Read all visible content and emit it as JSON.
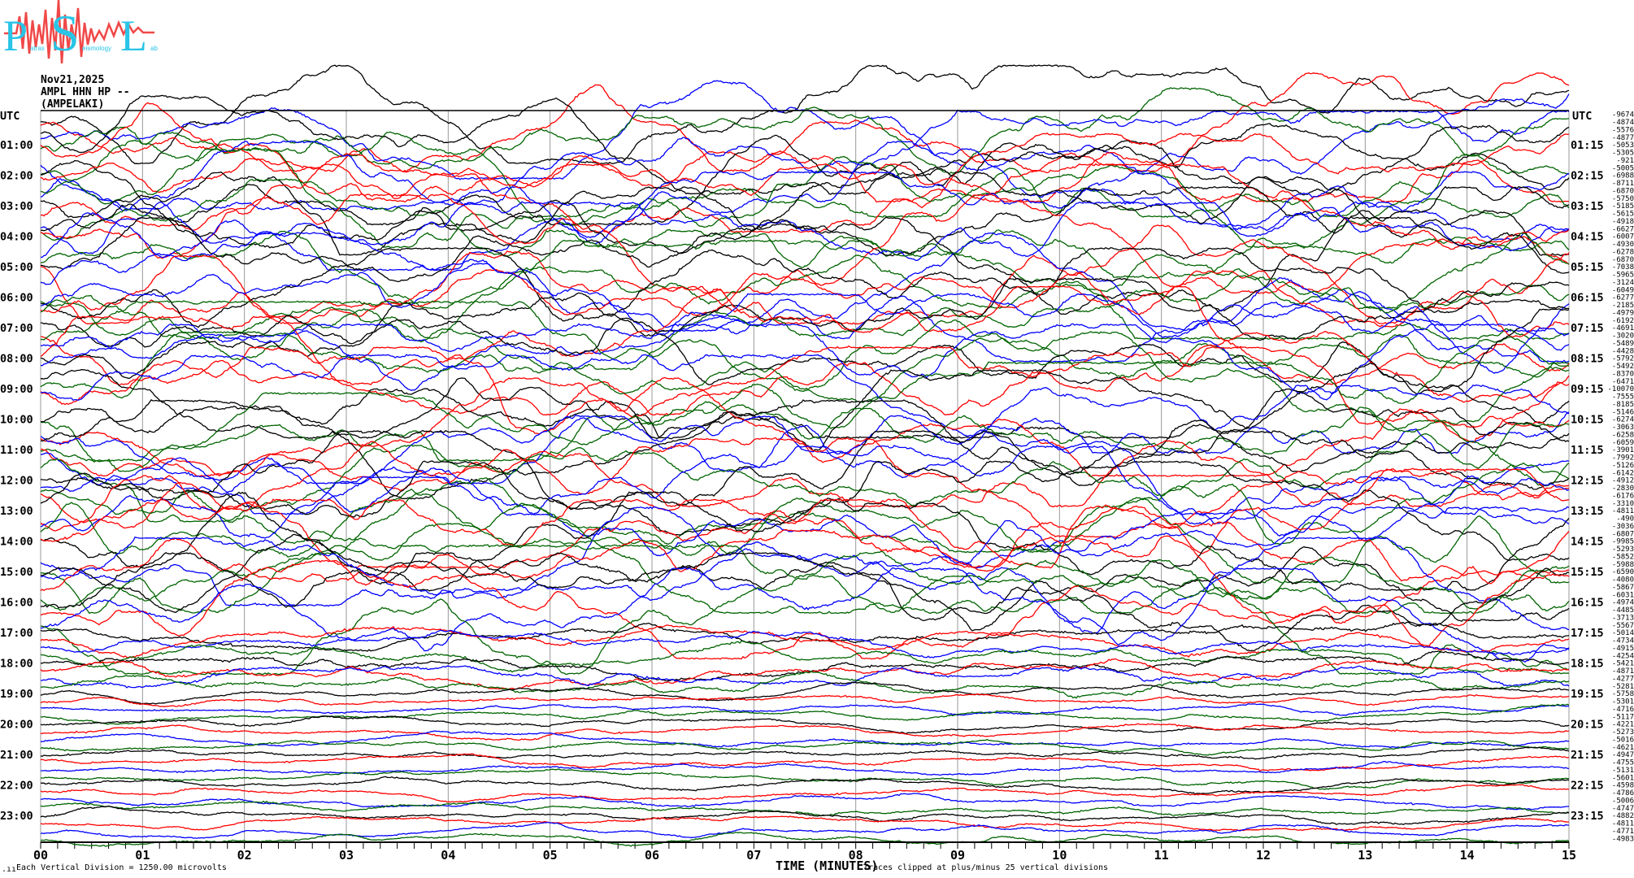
{
  "logo": {
    "text": "Patras Seismology Lab",
    "letter_color": "#29c4e6",
    "wave_color": "#f04848"
  },
  "header": {
    "date": "Nov21,2025",
    "station": "AMPL HHN HP --",
    "location": "(AMPELAKI)"
  },
  "left_axis": {
    "title": "UTC",
    "labels": [
      "01:00",
      "02:00",
      "03:00",
      "04:00",
      "05:00",
      "06:00",
      "07:00",
      "08:00",
      "09:00",
      "10:00",
      "11:00",
      "12:00",
      "13:00",
      "14:00",
      "15:00",
      "16:00",
      "17:00",
      "18:00",
      "19:00",
      "20:00",
      "21:00",
      "22:00",
      "23:00"
    ]
  },
  "right_axis": {
    "title": "UTC",
    "labels": [
      "01:15",
      "02:15",
      "03:15",
      "04:15",
      "05:15",
      "06:15",
      "07:15",
      "08:15",
      "09:15",
      "10:15",
      "11:15",
      "12:15",
      "13:15",
      "14:15",
      "15:15",
      "16:15",
      "17:15",
      "18:15",
      "19:15",
      "20:15",
      "21:15",
      "22:15",
      "23:15"
    ]
  },
  "chart_data": {
    "type": "line",
    "title": "",
    "xlabel": "TIME (MINUTES)",
    "xlim": [
      0,
      15
    ],
    "x_ticks": [
      "00",
      "01",
      "02",
      "03",
      "04",
      "05",
      "06",
      "07",
      "08",
      "09",
      "10",
      "11",
      "12",
      "13",
      "14",
      "15"
    ],
    "rows": 96,
    "row_minutes": 15,
    "trace_colors": [
      "#000000",
      "#ff0000",
      "#0000ff",
      "#006400"
    ],
    "trace_offsets": [
      -9674,
      -4874,
      -5576,
      -4877,
      -5053,
      -5305,
      -921,
      -5005,
      -6988,
      -8711,
      -6870,
      -5750,
      -5185,
      -5615,
      -4918,
      -6627,
      -6007,
      -4930,
      -6278,
      -6870,
      -7038,
      -5965,
      -3124,
      -6049,
      -6277,
      -2185,
      -4979,
      -6192,
      -4691,
      -3020,
      -5489,
      -4428,
      -5792,
      -5492,
      -8370,
      -6471,
      -10070,
      -7555,
      -8185,
      -5146,
      -6274,
      -3063,
      -6258,
      -6059,
      -3901,
      -7992,
      -5126,
      -6142,
      -4912,
      -2830,
      -6176,
      -3310,
      -4811,
      -490,
      -3036,
      -6807,
      -9985,
      -5293,
      -5852,
      -5988,
      -6590,
      -4080,
      -5867,
      -6031,
      -4974,
      -4485,
      -3713,
      -5567,
      -5014,
      -4734,
      -4915,
      -4254,
      -5421,
      -4871,
      -4277,
      -5281,
      -5758,
      -5301,
      -4716,
      -5117,
      -4221,
      -5273,
      -5016,
      -4621,
      -4947,
      -4755,
      -5131,
      -5601,
      -4598,
      -4786,
      -5006,
      -4747,
      -4882,
      -4811,
      -4771,
      -4983
    ],
    "grid": true
  },
  "footer": {
    "scale_note": "Each Vertical Division = 1250.00 microvolts",
    "axis_title": "TIME (MINUTES)",
    "clip_note": "Traces clipped at plus/minus 25 vertical divisions"
  }
}
